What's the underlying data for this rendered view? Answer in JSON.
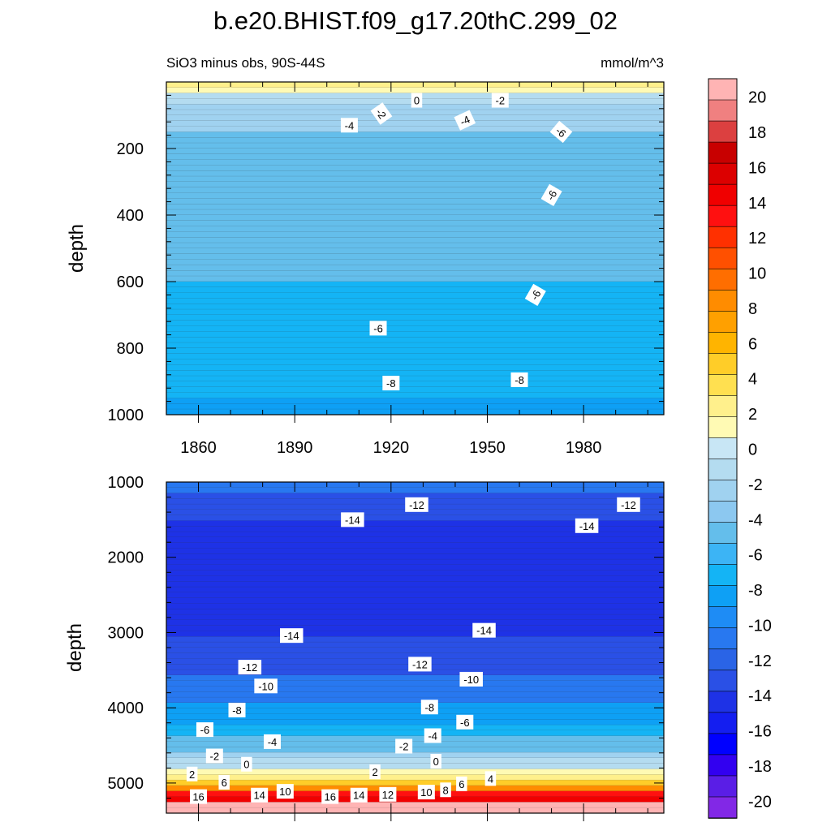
{
  "title": "b.e20.BHIST.f09_g17.20thC.299_02",
  "subtitle_left": "SiO3 minus obs, 90S-44S",
  "subtitle_right": "mmol/m^3",
  "chart_data": [
    {
      "type": "heatmap",
      "panel": "upper",
      "ylabel": "depth",
      "ylim": [
        1000,
        0
      ],
      "xlim": [
        1850,
        2005
      ],
      "x_ticks": [
        "1860",
        "1890",
        "1920",
        "1950",
        "1980"
      ],
      "y_ticks": [
        "200",
        "400",
        "600",
        "800",
        "1000"
      ],
      "depth": [
        10,
        60,
        150,
        220,
        350,
        500,
        650,
        800,
        900,
        1000
      ],
      "values": [
        2,
        -2,
        -4,
        -5,
        -5.6,
        -5.8,
        -6.1,
        -6.9,
        -7.6,
        -8.3
      ],
      "contour_labels": [
        {
          "text": "0",
          "x": 1928,
          "y": 55
        },
        {
          "text": "-2",
          "x": 1917,
          "y": 95,
          "rotate": 55
        },
        {
          "text": "-2",
          "x": 1954,
          "y": 55
        },
        {
          "text": "-4",
          "x": 1907,
          "y": 130
        },
        {
          "text": "-4",
          "x": 1943,
          "y": 115,
          "rotate": -25
        },
        {
          "text": "-6",
          "x": 1973,
          "y": 150,
          "rotate": 40
        },
        {
          "text": "-6",
          "x": 1970,
          "y": 340,
          "rotate": -60
        },
        {
          "text": "-6",
          "x": 1965,
          "y": 640,
          "rotate": -60
        },
        {
          "text": "-6",
          "x": 1916,
          "y": 740
        },
        {
          "text": "-8",
          "x": 1920,
          "y": 905
        },
        {
          "text": "-8",
          "x": 1960,
          "y": 895
        }
      ]
    },
    {
      "type": "heatmap",
      "panel": "lower",
      "ylabel": "depth",
      "ylim": [
        5400,
        1000
      ],
      "xlim": [
        1850,
        2005
      ],
      "y_ticks": [
        "1000",
        "2000",
        "3000",
        "4000",
        "5000"
      ],
      "depth": [
        1000,
        1300,
        1700,
        2700,
        3200,
        3700,
        4200,
        4500,
        4700,
        4850,
        5000,
        5100,
        5200,
        5300,
        5400
      ],
      "values": [
        -11,
        -13,
        -15.2,
        -15.2,
        -13.5,
        -11.5,
        -8,
        -5,
        -2,
        1,
        6,
        10,
        15,
        21,
        21
      ],
      "contour_labels": [
        {
          "text": "-12",
          "x": 1928,
          "y": 1300
        },
        {
          "text": "-12",
          "x": 1994,
          "y": 1300
        },
        {
          "text": "-14",
          "x": 1908,
          "y": 1500
        },
        {
          "text": "-14",
          "x": 1981,
          "y": 1580
        },
        {
          "text": "-14",
          "x": 1889,
          "y": 3040
        },
        {
          "text": "-14",
          "x": 1949,
          "y": 2970
        },
        {
          "text": "-12",
          "x": 1876,
          "y": 3460
        },
        {
          "text": "-12",
          "x": 1929,
          "y": 3420
        },
        {
          "text": "-10",
          "x": 1881,
          "y": 3710
        },
        {
          "text": "-10",
          "x": 1945,
          "y": 3620
        },
        {
          "text": "-8",
          "x": 1872,
          "y": 4030
        },
        {
          "text": "-8",
          "x": 1932,
          "y": 3990
        },
        {
          "text": "-6",
          "x": 1862,
          "y": 4290
        },
        {
          "text": "-6",
          "x": 1943,
          "y": 4190
        },
        {
          "text": "-4",
          "x": 1883,
          "y": 4450
        },
        {
          "text": "-4",
          "x": 1933,
          "y": 4370
        },
        {
          "text": "-2",
          "x": 1865,
          "y": 4640
        },
        {
          "text": "-2",
          "x": 1924,
          "y": 4510
        },
        {
          "text": "0",
          "x": 1875,
          "y": 4750
        },
        {
          "text": "0",
          "x": 1934,
          "y": 4710
        },
        {
          "text": "2",
          "x": 1858,
          "y": 4880
        },
        {
          "text": "2",
          "x": 1915,
          "y": 4850
        },
        {
          "text": "6",
          "x": 1868,
          "y": 4990
        },
        {
          "text": "6",
          "x": 1942,
          "y": 5010
        },
        {
          "text": "4",
          "x": 1951,
          "y": 4940
        },
        {
          "text": "8",
          "x": 1937,
          "y": 5090
        },
        {
          "text": "10",
          "x": 1887,
          "y": 5110
        },
        {
          "text": "10",
          "x": 1931,
          "y": 5120
        },
        {
          "text": "12",
          "x": 1919,
          "y": 5150
        },
        {
          "text": "14",
          "x": 1879,
          "y": 5160
        },
        {
          "text": "14",
          "x": 1910,
          "y": 5160
        },
        {
          "text": "16",
          "x": 1860,
          "y": 5180
        },
        {
          "text": "16",
          "x": 1901,
          "y": 5180
        }
      ]
    }
  ],
  "colorbar": {
    "labels": [
      "20",
      "18",
      "16",
      "14",
      "12",
      "10",
      "8",
      "6",
      "4",
      "2",
      "0",
      "-2",
      "-4",
      "-6",
      "-8",
      "-10",
      "-12",
      "-14",
      "-16",
      "-18",
      "-20"
    ],
    "colors": [
      "#ffb4b4",
      "#f08080",
      "#dc4040",
      "#c80000",
      "#dc0000",
      "#f00000",
      "#ff1010",
      "#ff3000",
      "#ff5000",
      "#ff6e00",
      "#ff8c00",
      "#ffa000",
      "#ffb400",
      "#ffcd28",
      "#ffe050",
      "#fff08c",
      "#fffab4",
      "#c8e6f5",
      "#b4dcf0",
      "#a0d2f0",
      "#8cc8f0",
      "#64beeb",
      "#3cb4f5",
      "#14b4f5",
      "#0ea0f5",
      "#1e8cf5",
      "#2878f0",
      "#2a64e6",
      "#2a50e6",
      "#1e32e6",
      "#141ef0",
      "#0000ff",
      "#3200f0",
      "#5a1ee6",
      "#8228e6"
    ]
  }
}
